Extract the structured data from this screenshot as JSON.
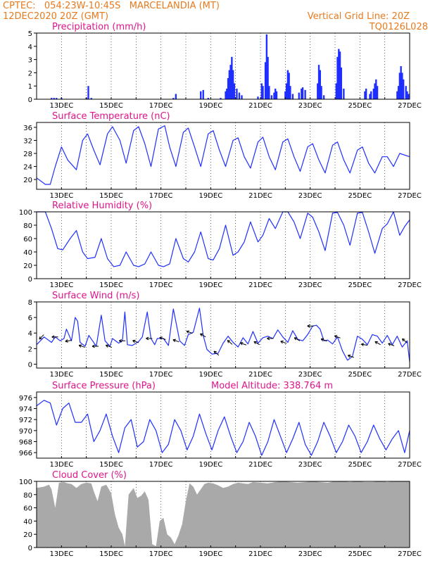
{
  "header": {
    "line1": "CPTEC:   054:23W-10:45S   MARCELANDIA (MT)",
    "line2": "12DEC2020 20Z (GMT)",
    "grid_note": "Vertical Grid Line: 20Z",
    "run_code": "TQ0126L028",
    "model_altitude": "Model Altitude: 338.764 m"
  },
  "colors": {
    "header_text": "#e87a1e",
    "panel_title": "#e0158a",
    "series_line": "#1f2fff",
    "cloud_fill": "#a9a9a9",
    "wind_arrow": "#000000"
  },
  "chart_data": [
    {
      "type": "bar",
      "title": "Precipitation (mm/h)",
      "x_ticks": [
        "13DEC",
        "15DEC",
        "17DEC",
        "19DEC",
        "21DEC",
        "23DEC",
        "25DEC",
        "27DEC"
      ],
      "xlim": [
        0,
        15
      ],
      "ylim": [
        0,
        5
      ],
      "y_ticks": [
        0,
        1,
        2,
        3,
        4,
        5
      ],
      "bars": [
        [
          0.6,
          0.1
        ],
        [
          0.7,
          0.1
        ],
        [
          0.8,
          0.1
        ],
        [
          1.0,
          0.1
        ],
        [
          2.0,
          0.1
        ],
        [
          2.08,
          1.0
        ],
        [
          2.2,
          0.1
        ],
        [
          5.5,
          0.1
        ],
        [
          5.6,
          0.4
        ],
        [
          6.6,
          0.6
        ],
        [
          6.7,
          0.7
        ],
        [
          6.9,
          0.1
        ],
        [
          7.4,
          0.1
        ],
        [
          7.6,
          0.6
        ],
        [
          7.65,
          0.8
        ],
        [
          7.7,
          1.6
        ],
        [
          7.75,
          2.2
        ],
        [
          7.8,
          2.6
        ],
        [
          7.85,
          3.2
        ],
        [
          7.9,
          2.2
        ],
        [
          7.95,
          1.2
        ],
        [
          8.05,
          0.8
        ],
        [
          8.15,
          0.5
        ],
        [
          8.25,
          0.3
        ],
        [
          8.9,
          0.2
        ],
        [
          9.05,
          1.2
        ],
        [
          9.1,
          1.0
        ],
        [
          9.2,
          2.8
        ],
        [
          9.25,
          4.9
        ],
        [
          9.3,
          3.2
        ],
        [
          9.35,
          1.0
        ],
        [
          9.45,
          0.3
        ],
        [
          9.55,
          0.5
        ],
        [
          9.6,
          0.8
        ],
        [
          9.65,
          0.6
        ],
        [
          10.0,
          0.6
        ],
        [
          10.05,
          1.2
        ],
        [
          10.1,
          2.2
        ],
        [
          10.15,
          2.0
        ],
        [
          10.2,
          1.0
        ],
        [
          10.3,
          0.4
        ],
        [
          10.55,
          0.5
        ],
        [
          10.65,
          0.8
        ],
        [
          10.7,
          0.9
        ],
        [
          10.8,
          0.7
        ],
        [
          11.3,
          1.2
        ],
        [
          11.35,
          2.6
        ],
        [
          11.4,
          2.2
        ],
        [
          11.45,
          1.0
        ],
        [
          11.55,
          0.3
        ],
        [
          12.05,
          1.2
        ],
        [
          12.1,
          3.2
        ],
        [
          12.15,
          3.8
        ],
        [
          12.2,
          3.6
        ],
        [
          12.25,
          2.4
        ],
        [
          12.35,
          0.8
        ],
        [
          13.2,
          0.6
        ],
        [
          13.25,
          0.8
        ],
        [
          13.4,
          0.4
        ],
        [
          13.45,
          0.6
        ],
        [
          13.55,
          0.8
        ],
        [
          13.6,
          1.2
        ],
        [
          13.65,
          1.5
        ],
        [
          13.7,
          1.0
        ],
        [
          14.5,
          0.6
        ],
        [
          14.55,
          1.0
        ],
        [
          14.6,
          2.0
        ],
        [
          14.65,
          2.5
        ],
        [
          14.7,
          2.0
        ],
        [
          14.75,
          1.5
        ],
        [
          14.85,
          1.0
        ],
        [
          14.9,
          0.6
        ],
        [
          14.95,
          0.4
        ]
      ]
    },
    {
      "type": "line",
      "title": "Surface Temperature (nC)",
      "x_ticks": [
        "13DEC",
        "15DEC",
        "17DEC",
        "19DEC",
        "21DEC",
        "23DEC",
        "25DEC",
        "27DEC"
      ],
      "xlim": [
        0,
        15
      ],
      "ylim": [
        17,
        37.5
      ],
      "y_ticks": [
        20,
        24,
        28,
        32,
        36
      ],
      "x": [
        0,
        0.35,
        0.55,
        0.75,
        1.0,
        1.25,
        1.6,
        1.85,
        2.05,
        2.3,
        2.55,
        2.85,
        3.05,
        3.35,
        3.6,
        3.9,
        4.1,
        4.35,
        4.6,
        4.9,
        5.15,
        5.35,
        5.6,
        5.9,
        6.1,
        6.35,
        6.6,
        6.9,
        7.1,
        7.35,
        7.6,
        7.9,
        8.1,
        8.35,
        8.6,
        8.9,
        9.1,
        9.35,
        9.6,
        9.9,
        10.1,
        10.35,
        10.6,
        10.9,
        11.1,
        11.35,
        11.6,
        11.9,
        12.1,
        12.35,
        12.6,
        12.9,
        13.1,
        13.35,
        13.6,
        13.9,
        14.1,
        14.35,
        14.6,
        15
      ],
      "values": [
        20.5,
        18.5,
        18.5,
        24,
        30,
        26,
        23,
        32,
        34,
        29,
        24.5,
        34,
        36.2,
        32,
        25,
        35,
        36.2,
        31,
        24,
        35.5,
        36.5,
        30,
        24,
        34.5,
        35.8,
        30,
        24,
        34,
        35,
        29,
        24,
        32,
        32.8,
        27,
        23.5,
        31.5,
        33,
        27,
        23,
        31.5,
        32.5,
        27,
        22.5,
        30,
        31,
        26,
        22,
        30.5,
        31.5,
        26,
        22,
        29,
        30,
        25,
        22,
        27,
        27,
        24,
        28,
        27
      ]
    },
    {
      "type": "line",
      "title": "Relative Humidity (%)",
      "x_ticks": [
        "13DEC",
        "15DEC",
        "17DEC",
        "19DEC",
        "21DEC",
        "23DEC",
        "25DEC",
        "27DEC"
      ],
      "xlim": [
        0,
        15
      ],
      "ylim": [
        0,
        100
      ],
      "y_ticks": [
        0,
        20,
        40,
        60,
        80,
        100
      ],
      "x": [
        0,
        0.35,
        0.6,
        0.85,
        1.05,
        1.35,
        1.6,
        1.85,
        2.05,
        2.35,
        2.6,
        2.85,
        3.1,
        3.35,
        3.6,
        3.9,
        4.1,
        4.35,
        4.6,
        4.9,
        5.1,
        5.35,
        5.6,
        5.9,
        6.1,
        6.35,
        6.6,
        6.9,
        7.1,
        7.35,
        7.6,
        7.9,
        8.1,
        8.35,
        8.6,
        8.9,
        9.1,
        9.35,
        9.6,
        9.9,
        10.1,
        10.35,
        10.6,
        10.9,
        11.1,
        11.35,
        11.6,
        11.9,
        12.1,
        12.35,
        12.6,
        12.9,
        13.1,
        13.35,
        13.6,
        13.9,
        14.1,
        14.35,
        14.6,
        14.8,
        15
      ],
      "values": [
        100,
        100,
        75,
        45,
        43,
        60,
        72,
        40,
        30,
        32,
        60,
        30,
        18,
        20,
        40,
        20,
        18,
        22,
        40,
        20,
        18,
        22,
        60,
        30,
        25,
        40,
        70,
        30,
        28,
        45,
        80,
        35,
        40,
        55,
        85,
        55,
        65,
        90,
        75,
        100,
        100,
        85,
        60,
        98,
        92,
        70,
        42,
        98,
        99,
        80,
        50,
        98,
        99,
        70,
        38,
        75,
        82,
        100,
        65,
        78,
        88
      ]
    },
    {
      "type": "line",
      "title": "Surface Wind (m/s)",
      "x_ticks": [
        "13DEC",
        "15DEC",
        "17DEC",
        "19DEC",
        "21DEC",
        "23DEC",
        "25DEC",
        "27DEC"
      ],
      "xlim": [
        0,
        15
      ],
      "ylim": [
        -0.5,
        8
      ],
      "y_ticks": [
        0,
        2,
        4,
        6,
        8
      ],
      "x": [
        0,
        0.3,
        0.6,
        0.75,
        0.95,
        1.1,
        1.2,
        1.4,
        1.55,
        1.65,
        1.75,
        1.95,
        2.1,
        2.25,
        2.4,
        2.6,
        2.75,
        2.95,
        3.05,
        3.3,
        3.45,
        3.55,
        3.65,
        3.85,
        4.1,
        4.25,
        4.45,
        4.6,
        4.75,
        4.85,
        5.1,
        5.3,
        5.5,
        5.75,
        5.95,
        6.1,
        6.3,
        6.55,
        6.7,
        6.85,
        7.05,
        7.3,
        7.5,
        7.7,
        7.9,
        8.1,
        8.3,
        8.5,
        8.7,
        8.9,
        9.1,
        9.3,
        9.5,
        9.7,
        9.9,
        10.1,
        10.3,
        10.5,
        10.7,
        10.9,
        11.1,
        11.25,
        11.4,
        11.55,
        11.7,
        11.9,
        12.1,
        12.3,
        12.5,
        12.7,
        12.9,
        13.1,
        13.3,
        13.5,
        13.7,
        13.9,
        14.1,
        14.3,
        14.5,
        14.7,
        14.9,
        15
      ],
      "values": [
        2.5,
        3.5,
        2.8,
        3.5,
        3.0,
        3.3,
        4.5,
        3.0,
        6.0,
        5.5,
        2.8,
        2.3,
        3.7,
        3.0,
        2.3,
        6.3,
        3.0,
        2.3,
        3.3,
        2.7,
        3.0,
        6.7,
        2.5,
        2.4,
        2.9,
        3.5,
        6.7,
        3.3,
        2.5,
        3.3,
        3.3,
        2.4,
        7.1,
        3.0,
        2.4,
        3.8,
        4.1,
        7.2,
        3.7,
        1.9,
        1.3,
        1.4,
        2.7,
        3.6,
        2.8,
        2.2,
        3.4,
        2.6,
        4.2,
        2.7,
        3.4,
        3.6,
        3.3,
        4.4,
        3.5,
        2.8,
        4.3,
        3.2,
        3.0,
        3.8,
        4.9,
        5.0,
        4.5,
        3.0,
        3.1,
        2.6,
        3.5,
        1.7,
        0.5,
        1.0,
        3.6,
        3.2,
        2.5,
        3.8,
        3.6,
        2.7,
        3.7,
        2.5,
        3.6,
        2.2,
        3.0,
        0.3
      ]
    },
    {
      "type": "line",
      "title": "Surface Pressure (hPa)",
      "x_ticks": [
        "13DEC",
        "15DEC",
        "17DEC",
        "19DEC",
        "21DEC",
        "23DEC",
        "25DEC",
        "27DEC"
      ],
      "xlim": [
        0,
        15
      ],
      "ylim": [
        965,
        977
      ],
      "y_ticks": [
        966,
        968,
        970,
        972,
        974,
        976
      ],
      "x": [
        0,
        0.3,
        0.55,
        0.8,
        1.05,
        1.3,
        1.55,
        1.8,
        2.05,
        2.3,
        2.55,
        2.8,
        3.05,
        3.3,
        3.55,
        3.8,
        4.05,
        4.3,
        4.55,
        4.8,
        5.05,
        5.3,
        5.55,
        5.8,
        6.05,
        6.3,
        6.55,
        6.8,
        7.05,
        7.3,
        7.55,
        7.8,
        8.05,
        8.3,
        8.55,
        8.8,
        9.05,
        9.3,
        9.55,
        9.8,
        10.05,
        10.3,
        10.55,
        10.8,
        11.05,
        11.3,
        11.55,
        11.8,
        12.05,
        12.3,
        12.55,
        12.8,
        13.05,
        13.3,
        13.55,
        13.8,
        14.05,
        14.3,
        14.55,
        14.8,
        15
      ],
      "values": [
        974.5,
        975.5,
        975,
        971,
        974,
        975,
        971.5,
        971.5,
        973,
        968,
        970,
        973,
        969,
        966,
        970.5,
        972,
        967,
        968,
        972,
        970,
        966,
        967.5,
        972,
        970,
        966.5,
        969,
        973,
        969.5,
        966.5,
        970,
        972.5,
        969,
        966,
        968,
        971.5,
        969,
        965.5,
        968,
        972,
        969,
        966,
        968.5,
        971.5,
        967.5,
        965.5,
        968,
        971.5,
        969,
        966,
        968,
        971,
        969,
        966,
        968,
        971,
        968.5,
        966.5,
        968.5,
        970,
        966,
        970
      ]
    },
    {
      "type": "area",
      "title": "Cloud Cover (%)",
      "x_ticks": [
        "13DEC",
        "15DEC",
        "17DEC",
        "19DEC",
        "21DEC",
        "23DEC",
        "25DEC",
        "27DEC"
      ],
      "xlim": [
        0,
        15
      ],
      "ylim": [
        0,
        100
      ],
      "y_ticks": [
        0,
        20,
        40,
        60,
        80,
        100
      ],
      "x": [
        0,
        0.3,
        0.5,
        0.6,
        0.75,
        0.9,
        1.1,
        1.25,
        1.4,
        1.6,
        1.8,
        2.0,
        2.2,
        2.3,
        2.45,
        2.6,
        2.8,
        3.0,
        3.15,
        3.3,
        3.45,
        3.55,
        3.7,
        3.9,
        4.05,
        4.2,
        4.35,
        4.5,
        4.65,
        4.8,
        4.95,
        5.1,
        5.25,
        5.4,
        5.55,
        5.7,
        5.85,
        6.0,
        6.15,
        6.3,
        6.45,
        6.6,
        6.75,
        6.9,
        7.1,
        7.3,
        7.5,
        7.7,
        7.9,
        8.1,
        8.3,
        8.5,
        8.7,
        9.0,
        9.3,
        9.6,
        9.9,
        10.2,
        10.5,
        10.8,
        11.1,
        11.4,
        11.7,
        12.0,
        12.3,
        12.6,
        12.9,
        13.2,
        13.5,
        13.8,
        14.1,
        14.4,
        14.7,
        15
      ],
      "values": [
        90,
        92,
        95,
        88,
        60,
        98,
        99,
        97,
        96,
        90,
        96,
        98,
        97,
        85,
        70,
        92,
        95,
        82,
        50,
        30,
        20,
        2,
        80,
        90,
        75,
        78,
        85,
        72,
        5,
        2,
        40,
        45,
        20,
        15,
        5,
        18,
        35,
        70,
        97,
        92,
        80,
        88,
        96,
        98,
        97,
        94,
        90,
        92,
        96,
        98,
        97,
        96,
        99,
        98,
        97,
        99,
        100,
        99,
        98,
        99,
        100,
        99,
        98,
        100,
        100,
        99,
        100,
        99,
        99,
        100,
        99,
        100,
        100,
        100
      ]
    }
  ]
}
